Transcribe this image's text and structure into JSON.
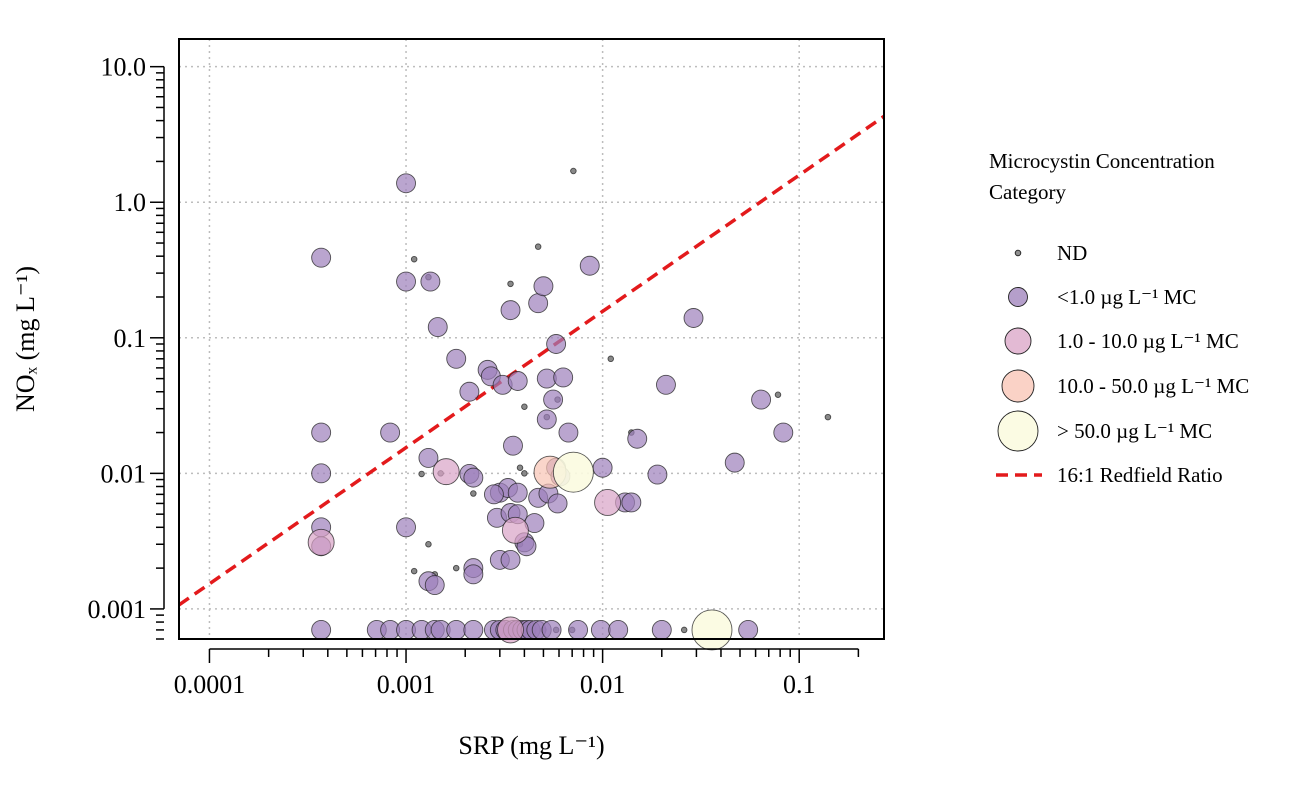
{
  "chart_data": {
    "type": "scatter",
    "title": "",
    "xlabel": "SRP (mg L⁻¹)",
    "ylabel": "NOₓ (mg L⁻¹)",
    "x_scale": "log",
    "y_scale": "log",
    "xlim": [
      7e-05,
      0.27
    ],
    "ylim": [
      0.0006,
      16
    ],
    "x_tick_labels": [
      "0.0001",
      "0.001",
      "0.01",
      "0.1"
    ],
    "x_tick_values": [
      0.0001,
      0.001,
      0.01,
      0.1
    ],
    "y_tick_labels": [
      "0.001",
      "0.01",
      "0.1",
      "1.0",
      "10.0"
    ],
    "y_tick_values": [
      0.001,
      0.01,
      0.1,
      1.0,
      10.0
    ],
    "grid": true,
    "legend_position": "right",
    "legend_title": "Microcystin Concentration Category",
    "legend_title_lines": [
      "Microcystin Concentration",
      "Category"
    ],
    "categories": [
      {
        "key": "nd",
        "label": "ND",
        "color": "#6b6b6b",
        "size_rank": 0
      },
      {
        "key": "lt1",
        "label": "<1.0 µg L⁻¹ MC",
        "color": "#9c7fba",
        "size_rank": 1
      },
      {
        "key": "c1_10",
        "label": "1.0 - 10.0 µg L⁻¹ MC",
        "color": "#d9a3c6",
        "size_rank": 2
      },
      {
        "key": "c10_50",
        "label": "10.0 - 50.0 µg L⁻¹ MC",
        "color": "#f8c3b3",
        "size_rank": 3
      },
      {
        "key": "gt50",
        "label": "> 50.0 µg L⁻¹ MC",
        "color": "#fbfbe0",
        "size_rank": 4
      }
    ],
    "reference_line": {
      "label": "16:1 Redfield Ratio",
      "color": "#e31a1c",
      "x": [
        7e-05,
        0.27
      ],
      "y": [
        0.00107,
        4.3
      ]
    },
    "series": [
      {
        "key": "nd",
        "points": [
          [
            0.0071,
            1.7
          ],
          [
            0.0047,
            0.47
          ],
          [
            0.0011,
            0.38
          ],
          [
            0.0013,
            0.28
          ],
          [
            0.0034,
            0.25
          ],
          [
            0.011,
            0.07
          ],
          [
            0.0059,
            0.035
          ],
          [
            0.004,
            0.031
          ],
          [
            0.078,
            0.038
          ],
          [
            0.14,
            0.026
          ],
          [
            0.0052,
            0.026
          ],
          [
            0.014,
            0.02
          ],
          [
            0.0038,
            0.011
          ],
          [
            0.004,
            0.01
          ],
          [
            0.0015,
            0.01
          ],
          [
            0.0012,
            0.0099
          ],
          [
            0.0022,
            0.0071
          ],
          [
            0.0013,
            0.003
          ],
          [
            0.0011,
            0.0019
          ],
          [
            0.0014,
            0.0018
          ],
          [
            0.0018,
            0.002
          ],
          [
            0.0038,
            0.003
          ],
          [
            0.005,
            0.0007
          ],
          [
            0.0058,
            0.0007
          ],
          [
            0.007,
            0.0007
          ],
          [
            0.026,
            0.0007
          ]
        ]
      },
      {
        "key": "lt1",
        "points": [
          [
            0.00037,
            0.39
          ],
          [
            0.00037,
            0.02
          ],
          [
            0.00037,
            0.01
          ],
          [
            0.00037,
            0.004
          ],
          [
            0.00037,
            0.0029
          ],
          [
            0.001,
            1.38
          ],
          [
            0.001,
            0.26
          ],
          [
            0.00133,
            0.26
          ],
          [
            0.00145,
            0.12
          ],
          [
            0.0018,
            0.07
          ],
          [
            0.00083,
            0.02
          ],
          [
            0.001,
            0.004
          ],
          [
            0.0013,
            0.0016
          ],
          [
            0.0014,
            0.0015
          ],
          [
            0.0013,
            0.013
          ],
          [
            0.0021,
            0.04
          ],
          [
            0.0021,
            0.0099
          ],
          [
            0.0022,
            0.0093
          ],
          [
            0.0022,
            0.002
          ],
          [
            0.0022,
            0.0018
          ],
          [
            0.0026,
            0.058
          ],
          [
            0.0027,
            0.052
          ],
          [
            0.0031,
            0.045
          ],
          [
            0.0037,
            0.048
          ],
          [
            0.0034,
            0.16
          ],
          [
            0.0035,
            0.016
          ],
          [
            0.003,
            0.0072
          ],
          [
            0.0033,
            0.0078
          ],
          [
            0.0037,
            0.0072
          ],
          [
            0.0028,
            0.007
          ],
          [
            0.0029,
            0.0047
          ],
          [
            0.0034,
            0.0051
          ],
          [
            0.0037,
            0.005
          ],
          [
            0.004,
            0.0031
          ],
          [
            0.0041,
            0.0029
          ],
          [
            0.003,
            0.0023
          ],
          [
            0.0034,
            0.0023
          ],
          [
            0.0045,
            0.0043
          ],
          [
            0.0047,
            0.0066
          ],
          [
            0.0047,
            0.18
          ],
          [
            0.005,
            0.24
          ],
          [
            0.0058,
            0.09
          ],
          [
            0.0052,
            0.05
          ],
          [
            0.0063,
            0.051
          ],
          [
            0.0056,
            0.035
          ],
          [
            0.0052,
            0.025
          ],
          [
            0.0067,
            0.02
          ],
          [
            0.0058,
            0.011
          ],
          [
            0.0061,
            0.0095
          ],
          [
            0.0053,
            0.0071
          ],
          [
            0.0059,
            0.006
          ],
          [
            0.0086,
            0.34
          ],
          [
            0.01,
            0.011
          ],
          [
            0.013,
            0.0061
          ],
          [
            0.014,
            0.0061
          ],
          [
            0.015,
            0.018
          ],
          [
            0.019,
            0.0098
          ],
          [
            0.021,
            0.045
          ],
          [
            0.029,
            0.14
          ],
          [
            0.047,
            0.012
          ],
          [
            0.064,
            0.035
          ],
          [
            0.083,
            0.02
          ],
          [
            0.00037,
            0.0007
          ],
          [
            0.00071,
            0.0007
          ],
          [
            0.00083,
            0.0007
          ],
          [
            0.001,
            0.0007
          ],
          [
            0.0012,
            0.0007
          ],
          [
            0.0014,
            0.0007
          ],
          [
            0.0015,
            0.0007
          ],
          [
            0.0018,
            0.0007
          ],
          [
            0.0022,
            0.0007
          ],
          [
            0.0028,
            0.0007
          ],
          [
            0.003,
            0.0007
          ],
          [
            0.0032,
            0.0007
          ],
          [
            0.0035,
            0.0007
          ],
          [
            0.0037,
            0.0007
          ],
          [
            0.0039,
            0.0007
          ],
          [
            0.0041,
            0.0007
          ],
          [
            0.0043,
            0.0007
          ],
          [
            0.0046,
            0.0007
          ],
          [
            0.0049,
            0.0007
          ],
          [
            0.0055,
            0.0007
          ],
          [
            0.0075,
            0.0007
          ],
          [
            0.0098,
            0.0007
          ],
          [
            0.012,
            0.0007
          ],
          [
            0.02,
            0.0007
          ],
          [
            0.055,
            0.0007
          ]
        ]
      },
      {
        "key": "c1_10",
        "points": [
          [
            0.00037,
            0.0031
          ],
          [
            0.0016,
            0.0103
          ],
          [
            0.0036,
            0.0038
          ],
          [
            0.0106,
            0.0061
          ],
          [
            0.0034,
            0.0007
          ]
        ]
      },
      {
        "key": "c10_50",
        "points": [
          [
            0.0054,
            0.0102
          ]
        ]
      },
      {
        "key": "gt50",
        "points": [
          [
            0.0071,
            0.0102
          ],
          [
            0.036,
            0.0007
          ]
        ]
      }
    ]
  }
}
